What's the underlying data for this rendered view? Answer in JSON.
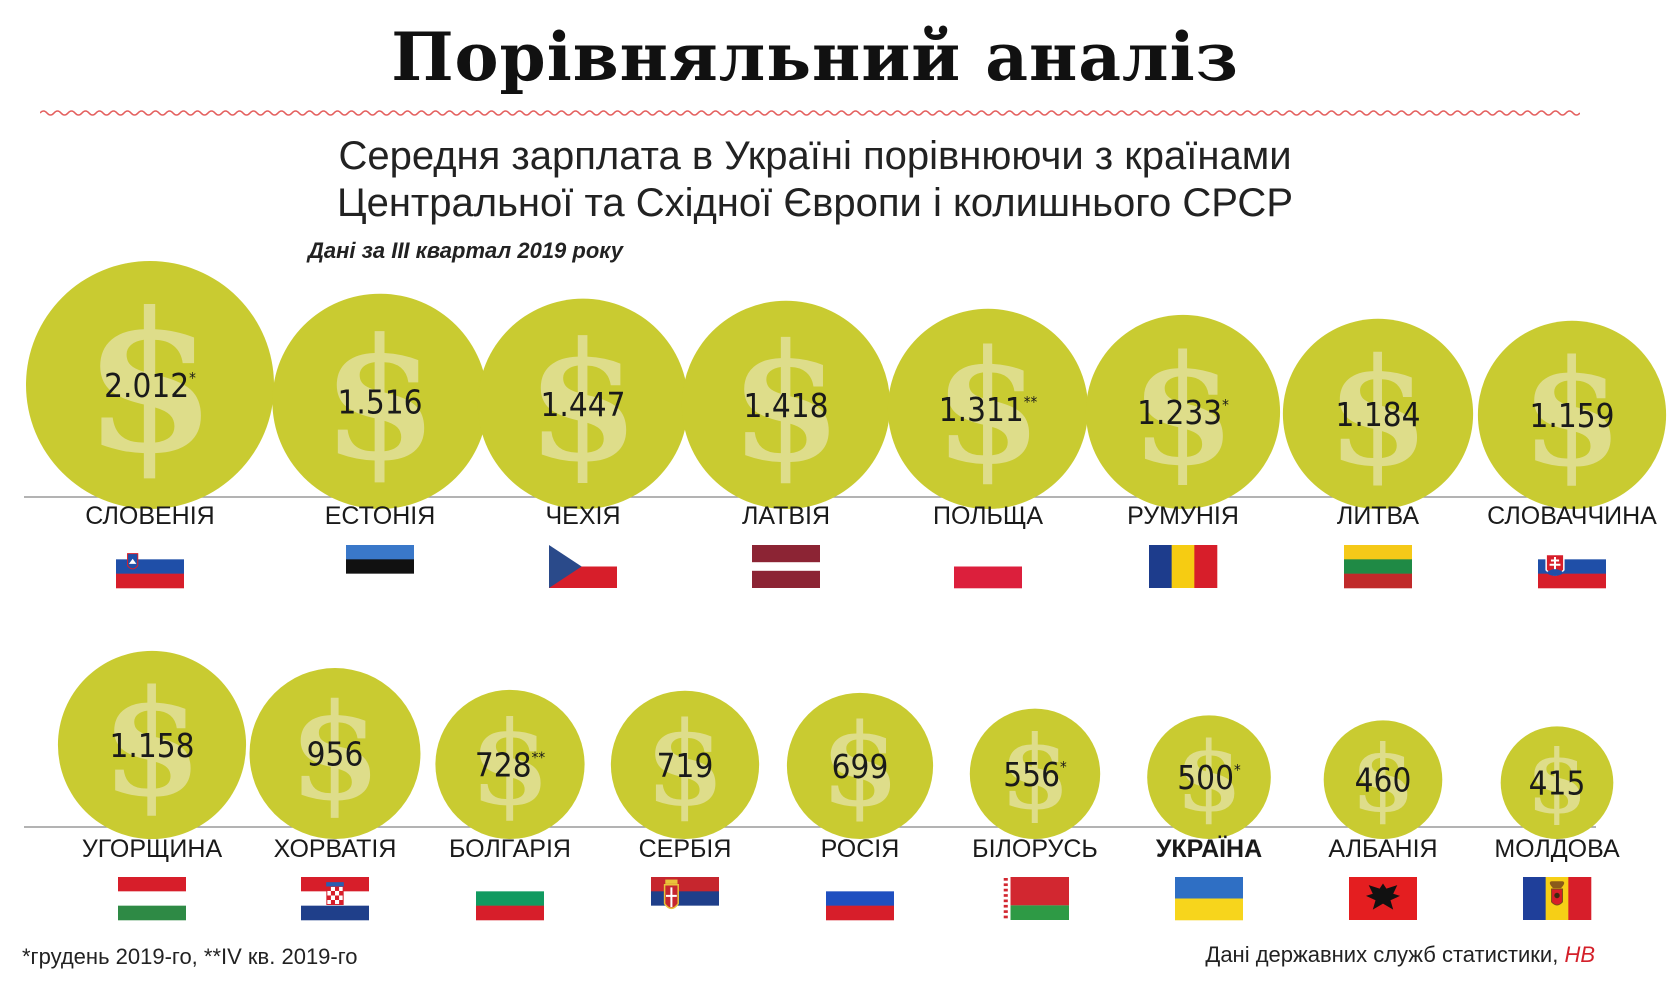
{
  "title": "Порівняльний аналіз",
  "subtitle_lines": [
    "Середня зарплата в Україні порівнюючи з країнами",
    "Центральної та Східної Європи і колишнього СРСР"
  ],
  "period": "Дані за III квартал 2019 року",
  "footnote": "*грудень 2019-го, **IV кв. 2019-го",
  "source_prefix": "Дані державних служб статистики,",
  "source_brand": "НВ",
  "colors": {
    "coin": "#c9cb31",
    "coin_symbol": "#dedd8a",
    "accent": "#d4202a",
    "text": "#1a1a1a"
  },
  "chart_data": {
    "type": "bubble",
    "unit": "",
    "highlight": "УКРАЇНА",
    "points": [
      {
        "country": "СЛОВЕНІЯ",
        "value": 2012,
        "label": "2.012",
        "note": "*"
      },
      {
        "country": "ЕСТОНІЯ",
        "value": 1516,
        "label": "1.516",
        "note": ""
      },
      {
        "country": "ЧЕХІЯ",
        "value": 1447,
        "label": "1.447",
        "note": ""
      },
      {
        "country": "ЛАТВІЯ",
        "value": 1418,
        "label": "1.418",
        "note": ""
      },
      {
        "country": "ПОЛЬЩА",
        "value": 1311,
        "label": "1.311",
        "note": "**"
      },
      {
        "country": "РУМУНІЯ",
        "value": 1233,
        "label": "1.233",
        "note": "*"
      },
      {
        "country": "ЛИТВА",
        "value": 1184,
        "label": "1.184",
        "note": ""
      },
      {
        "country": "СЛОВАЧЧИНА",
        "value": 1159,
        "label": "1.159",
        "note": ""
      },
      {
        "country": "УГОРЩИНА",
        "value": 1158,
        "label": "1.158",
        "note": ""
      },
      {
        "country": "ХОРВАТІЯ",
        "value": 956,
        "label": "956",
        "note": ""
      },
      {
        "country": "БОЛГАРІЯ",
        "value": 728,
        "label": "728",
        "note": "**"
      },
      {
        "country": "СЕРБІЯ",
        "value": 719,
        "label": "719",
        "note": ""
      },
      {
        "country": "РОСІЯ",
        "value": 699,
        "label": "699",
        "note": ""
      },
      {
        "country": "БІЛОРУСЬ",
        "value": 556,
        "label": "556",
        "note": "*"
      },
      {
        "country": "УКРАЇНА",
        "value": 500,
        "label": "500",
        "note": "*"
      },
      {
        "country": "АЛБАНІЯ",
        "value": 460,
        "label": "460",
        "note": ""
      },
      {
        "country": "МОЛДОВА",
        "value": 415,
        "label": "415",
        "note": ""
      }
    ]
  },
  "flags": [
    {
      "country": "СЛОВЕНІЯ",
      "stripes": "h",
      "colors": [
        "#ffffff",
        "#1f4fa8",
        "#d71e2a"
      ],
      "emblem": "slovenia"
    },
    {
      "country": "ЕСТОНІЯ",
      "stripes": "h",
      "colors": [
        "#3a78c9",
        "#111111",
        "#ffffff"
      ],
      "emblem": ""
    },
    {
      "country": "ЧЕХІЯ",
      "stripes": "cz",
      "colors": [
        "#ffffff",
        "#d71e2a",
        "#2a4a8a"
      ],
      "emblem": ""
    },
    {
      "country": "ЛАТВІЯ",
      "stripes": "lv",
      "colors": [
        "#8c2434",
        "#ffffff",
        "#8c2434"
      ],
      "emblem": ""
    },
    {
      "country": "ПОЛЬЩА",
      "stripes": "h2",
      "colors": [
        "#ffffff",
        "#dc1f3c"
      ],
      "emblem": ""
    },
    {
      "country": "РУМУНІЯ",
      "stripes": "v",
      "colors": [
        "#1d3c8c",
        "#f6cc12",
        "#d71e2a"
      ],
      "emblem": ""
    },
    {
      "country": "ЛИТВА",
      "stripes": "h",
      "colors": [
        "#f5c918",
        "#1f8a45",
        "#c02a2a"
      ],
      "emblem": ""
    },
    {
      "country": "СЛОВАЧЧИНА",
      "stripes": "h",
      "colors": [
        "#ffffff",
        "#1f4fa8",
        "#d71e2a"
      ],
      "emblem": "slovakia"
    },
    {
      "country": "УГОРЩИНА",
      "stripes": "h",
      "colors": [
        "#d71e2a",
        "#ffffff",
        "#2e8a45"
      ],
      "emblem": ""
    },
    {
      "country": "ХОРВАТІЯ",
      "stripes": "h",
      "colors": [
        "#d71e2a",
        "#ffffff",
        "#1f3f8a"
      ],
      "emblem": "croatia"
    },
    {
      "country": "БОЛГАРІЯ",
      "stripes": "h",
      "colors": [
        "#ffffff",
        "#119a60",
        "#d71e2a"
      ],
      "emblem": ""
    },
    {
      "country": "СЕРБІЯ",
      "stripes": "h",
      "colors": [
        "#c6262e",
        "#1f3f8a",
        "#ffffff"
      ],
      "emblem": "serbia"
    },
    {
      "country": "РОСІЯ",
      "stripes": "h",
      "colors": [
        "#ffffff",
        "#1f4fc0",
        "#d71e2a"
      ],
      "emblem": ""
    },
    {
      "country": "БІЛОРУСЬ",
      "stripes": "by",
      "colors": [
        "#d22730",
        "#2e9a45",
        "#ffffff"
      ],
      "emblem": ""
    },
    {
      "country": "УКРАЇНА",
      "stripes": "h2",
      "colors": [
        "#2f6fc4",
        "#f7d51c"
      ],
      "emblem": ""
    },
    {
      "country": "АЛБАНІЯ",
      "stripes": "solid",
      "colors": [
        "#e41e20"
      ],
      "emblem": "albania"
    },
    {
      "country": "МОЛДОВА",
      "stripes": "v",
      "colors": [
        "#1f3f9a",
        "#f6cf16",
        "#d71e2a"
      ],
      "emblem": "moldova"
    }
  ]
}
